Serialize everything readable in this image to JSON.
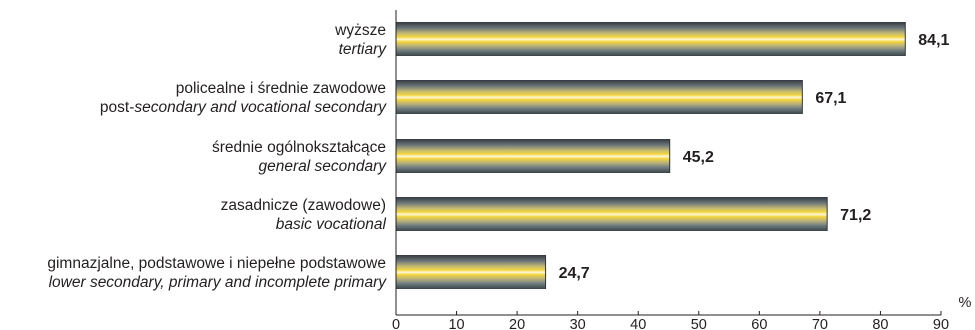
{
  "chart_data": {
    "type": "bar",
    "orientation": "horizontal",
    "categories": [
      {
        "pl": "wyższe",
        "en": "tertiary"
      },
      {
        "pl": "policealne i średnie zawodowe",
        "en_prefix": "post-",
        "en": "secondary and vocational secondary"
      },
      {
        "pl": "średnie ogólnokształcące",
        "en": "general secondary"
      },
      {
        "pl": "zasadnicze (zawodowe)",
        "en": "basic vocational"
      },
      {
        "pl": "gimnazjalne, podstawowe i niepełne podstawowe",
        "en": "lower secondary, primary and incomplete primary"
      }
    ],
    "values": [
      84.1,
      67.1,
      45.2,
      71.2,
      24.7
    ],
    "value_labels": [
      "84,1",
      "67,1",
      "45,2",
      "71,2",
      "24,7"
    ],
    "xlim": [
      0,
      90
    ],
    "xticks": [
      0,
      10,
      20,
      30,
      40,
      50,
      60,
      70,
      80,
      90
    ],
    "x_unit": "%",
    "grid": false,
    "legend": "none",
    "colors": {
      "bar_dark": "#3a4046",
      "bar_mid": "#7d8a8c",
      "bar_highlight": "#f3d23a",
      "bar_light": "#fdf7d2",
      "axis": "#231f20",
      "text": "#231f20"
    }
  }
}
